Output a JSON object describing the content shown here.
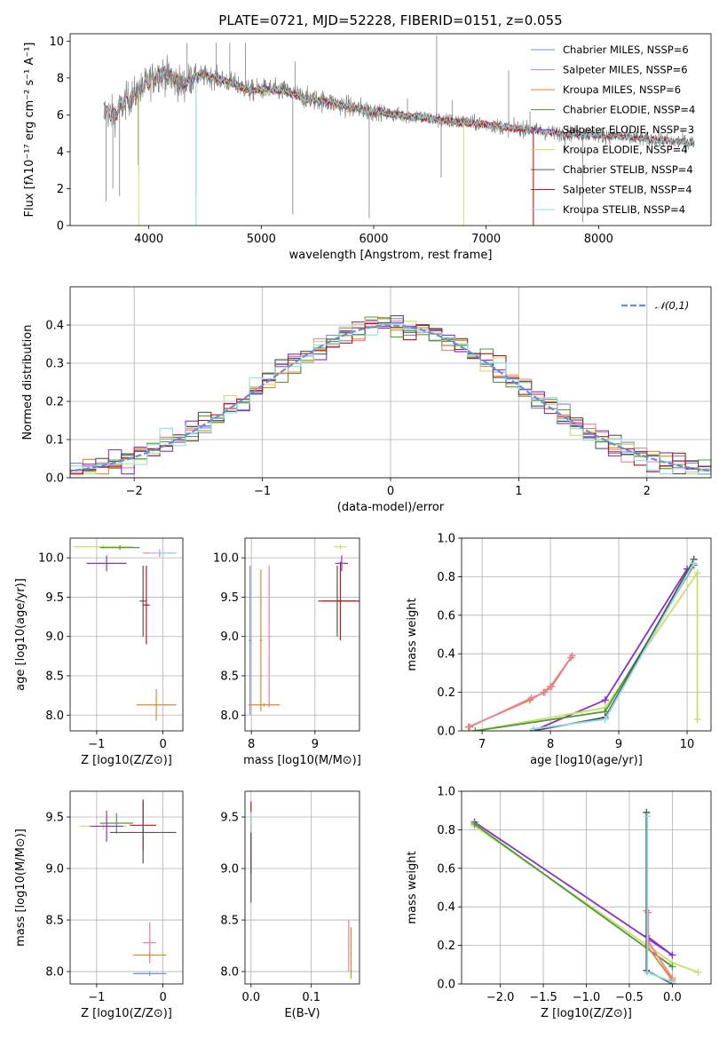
{
  "figure_title": "PLATE=0721, MJD=52228, FIBERID=0151, z=0.055",
  "colors": {
    "data": "#808080",
    "Chabrier MILES": "#6f8fd8",
    "Salpeter MILES": "#ee7fa3",
    "Kroupa MILES": "#d98a2b",
    "Chabrier ELODIE": "#4f9a3c",
    "Salpeter ELODIE": "#8a2fc7",
    "Kroupa ELODIE": "#c9df63",
    "Chabrier STELIB": "#555555",
    "Salpeter STELIB": "#b81818",
    "Kroupa STELIB": "#8fdde8",
    "gauss": "#5f8fdf"
  },
  "chart_data": [
    {
      "id": "spectrum",
      "type": "line",
      "xlabel": "wavelength [Angstrom, rest frame]",
      "ylabel": "Flux [fλ10⁻¹⁷ erg cm⁻² s⁻¹ A⁻¹]",
      "xlim": [
        3300,
        9000
      ],
      "ylim": [
        0,
        10.4
      ],
      "xticks": [
        4000,
        5000,
        6000,
        7000,
        8000
      ],
      "yticks": [
        0,
        2,
        4,
        6,
        8,
        10
      ],
      "grid": false,
      "legend_position": "top-right",
      "legend": [
        "Chabrier MILES, NSSP=6",
        "Salpeter MILES, NSSP=6",
        "Kroupa MILES, NSSP=6",
        "Chabrier ELODIE, NSSP=4",
        "Salpeter ELODIE, NSSP=3",
        "Kroupa ELODIE, NSSP=4",
        "Chabrier STELIB, NSSP=4",
        "Salpeter STELIB, NSSP=4",
        "Kroupa STELIB, NSSP=4"
      ],
      "continuum": [
        [
          3600,
          6.2
        ],
        [
          3700,
          6.0
        ],
        [
          3800,
          6.8
        ],
        [
          3900,
          7.2
        ],
        [
          4000,
          7.8
        ],
        [
          4100,
          8.3
        ],
        [
          4200,
          8.0
        ],
        [
          4300,
          7.6
        ],
        [
          4400,
          8.1
        ],
        [
          4500,
          8.1
        ],
        [
          4600,
          8.0
        ],
        [
          4700,
          7.8
        ],
        [
          4800,
          7.6
        ],
        [
          4900,
          7.3
        ],
        [
          5000,
          7.4
        ],
        [
          5200,
          7.3
        ],
        [
          5400,
          6.9
        ],
        [
          5600,
          6.7
        ],
        [
          5800,
          6.4
        ],
        [
          6000,
          6.2
        ],
        [
          6200,
          6.0
        ],
        [
          6400,
          5.9
        ],
        [
          6600,
          5.7
        ],
        [
          6800,
          5.6
        ],
        [
          7000,
          5.5
        ],
        [
          7200,
          5.3
        ],
        [
          7400,
          5.2
        ],
        [
          7600,
          5.0
        ],
        [
          7800,
          5.0
        ],
        [
          8000,
          4.9
        ],
        [
          8200,
          4.8
        ],
        [
          8400,
          4.7
        ],
        [
          8600,
          4.6
        ],
        [
          8800,
          4.5
        ]
      ],
      "data_spikes": [
        [
          3620,
          1.3
        ],
        [
          3680,
          2.0
        ],
        [
          3740,
          1.6
        ],
        [
          3905,
          3.3
        ],
        [
          4340,
          9.9
        ],
        [
          4420,
          1.6
        ],
        [
          4600,
          9.9
        ],
        [
          4720,
          9.9
        ],
        [
          4860,
          9.9
        ],
        [
          5280,
          0.6
        ],
        [
          5300,
          8.9
        ],
        [
          5960,
          0.4
        ],
        [
          6300,
          6.9
        ],
        [
          6560,
          10.3
        ],
        [
          6600,
          2.6
        ],
        [
          6700,
          6.8
        ],
        [
          7200,
          8.4
        ],
        [
          7390,
          6.2
        ],
        [
          7700,
          4.0
        ],
        [
          7860,
          0.2
        ]
      ]
    },
    {
      "id": "residuals",
      "type": "step",
      "xlabel": "(data-model)/error",
      "ylabel": "Normed distribution",
      "xlim": [
        -2.5,
        2.5
      ],
      "ylim": [
        0,
        0.5
      ],
      "xticks": [
        -2,
        -1,
        0,
        1,
        2
      ],
      "yticks": [
        0.0,
        0.1,
        0.2,
        0.3,
        0.4
      ],
      "grid": true,
      "legend": [
        "𝒩(0,1)"
      ],
      "legend_position": "top-right"
    },
    {
      "id": "age_vs_Z",
      "type": "errorbar",
      "xlabel": "Z [log10(Z/Z⊙)]",
      "ylabel": "age  [log10(age/yr)]",
      "xlim": [
        -1.4,
        0.3
      ],
      "ylim": [
        7.8,
        10.25
      ],
      "xticks": [
        -1,
        0
      ],
      "yticks": [
        8.0,
        8.5,
        9.0,
        9.5,
        10.0
      ],
      "grid": true,
      "points": [
        {
          "model": "Kroupa ELODIE",
          "x": -0.9,
          "xerr": 0.45,
          "y": 10.14,
          "yerr": 0.03
        },
        {
          "model": "Chabrier ELODIE",
          "x": -0.65,
          "xerr": 0.3,
          "y": 10.13,
          "yerr": 0.03
        },
        {
          "model": "Salpeter ELODIE",
          "x": -0.85,
          "xerr": 0.3,
          "y": 9.93,
          "yerr": 0.1
        },
        {
          "model": "Chabrier STELIB",
          "x": -0.3,
          "xerr": 0.05,
          "y": 9.45,
          "yerr": 0.45
        },
        {
          "model": "Salpeter STELIB",
          "x": -0.25,
          "xerr": 0.05,
          "y": 9.4,
          "yerr": 0.5
        },
        {
          "model": "Kroupa MILES",
          "x": -0.1,
          "xerr": 0.3,
          "y": 8.13,
          "yerr": 0.2
        },
        {
          "model": "Salpeter MILES",
          "x": -0.05,
          "xerr": 0.25,
          "y": 10.06,
          "yerr": 0.05
        },
        {
          "model": "Kroupa STELIB",
          "x": 0.0,
          "xerr": 0.2,
          "y": 10.06,
          "yerr": 0.05
        }
      ]
    },
    {
      "id": "age_vs_mass",
      "type": "errorbar",
      "xlabel": "mass [log10(M/M⊙)]",
      "ylabel": "",
      "xlim": [
        7.9,
        9.7
      ],
      "ylim": [
        7.8,
        10.25
      ],
      "xticks": [
        8,
        9
      ],
      "yticks": [
        8.0,
        8.5,
        9.0,
        9.5,
        10.0
      ],
      "grid": true,
      "points": [
        {
          "model": "Chabrier MILES",
          "x": 7.98,
          "xerr": 0.02,
          "y": 8.95,
          "yerr": 0.95
        },
        {
          "model": "Kroupa MILES",
          "x": 8.15,
          "xerr": 0.02,
          "y": 8.95,
          "yerr": 0.9
        },
        {
          "model": "Salpeter MILES",
          "x": 8.28,
          "xerr": 0.02,
          "y": 9.0,
          "yerr": 0.9
        },
        {
          "model": "Kroupa MILES",
          "x": 8.2,
          "xerr": 0.25,
          "y": 8.13,
          "yerr": 0.02
        },
        {
          "model": "Chabrier STELIB",
          "x": 9.35,
          "xerr": 0.3,
          "y": 9.45,
          "yerr": 0.45
        },
        {
          "model": "Salpeter STELIB",
          "x": 9.4,
          "xerr": 0.3,
          "y": 9.45,
          "yerr": 0.5
        },
        {
          "model": "Kroupa ELODIE",
          "x": 9.4,
          "xerr": 0.1,
          "y": 10.14,
          "yerr": 0.03
        },
        {
          "model": "Salpeter ELODIE",
          "x": 9.42,
          "xerr": 0.1,
          "y": 9.93,
          "yerr": 0.1
        }
      ]
    },
    {
      "id": "massweight_vs_age",
      "type": "line",
      "xlabel": "age  [log10(age/yr)]",
      "ylabel": "mass weight",
      "xlim": [
        6.7,
        10.35
      ],
      "ylim": [
        0,
        1.0
      ],
      "xticks": [
        7,
        8,
        9,
        10
      ],
      "yticks": [
        0.0,
        0.2,
        0.4,
        0.6,
        0.8,
        1.0
      ],
      "grid": true,
      "series": [
        {
          "model": "Kroupa MILES",
          "points": [
            [
              6.8,
              0.02
            ],
            [
              7.7,
              0.16
            ],
            [
              7.9,
              0.2
            ],
            [
              8.0,
              0.23
            ],
            [
              8.3,
              0.38
            ]
          ]
        },
        {
          "model": "Salpeter MILES",
          "points": [
            [
              6.82,
              0.02
            ],
            [
              7.72,
              0.17
            ],
            [
              7.92,
              0.2
            ],
            [
              8.02,
              0.23
            ],
            [
              8.32,
              0.39
            ]
          ]
        },
        {
          "model": "Salpeter ELODIE",
          "points": [
            [
              7.75,
              0.0
            ],
            [
              8.8,
              0.16
            ],
            [
              10.0,
              0.84
            ]
          ]
        },
        {
          "model": "Kroupa ELODIE",
          "points": [
            [
              6.9,
              0.0
            ],
            [
              8.8,
              0.12
            ],
            [
              10.15,
              0.82
            ],
            [
              10.15,
              0.06
            ]
          ]
        },
        {
          "model": "Chabrier ELODIE",
          "points": [
            [
              6.9,
              0.0
            ],
            [
              8.8,
              0.1
            ],
            [
              10.1,
              0.86
            ]
          ]
        },
        {
          "model": "Chabrier STELIB",
          "points": [
            [
              7.75,
              0.0
            ],
            [
              8.8,
              0.07
            ],
            [
              10.1,
              0.89
            ]
          ]
        },
        {
          "model": "Kroupa STELIB",
          "points": [
            [
              7.75,
              0.01
            ],
            [
              8.8,
              0.06
            ],
            [
              10.1,
              0.87
            ]
          ]
        }
      ]
    },
    {
      "id": "mass_vs_Z",
      "type": "errorbar",
      "xlabel": "Z [log10(Z/Z⊙)]",
      "ylabel": "mass [log10(M/M⊙)]",
      "xlim": [
        -1.4,
        0.3
      ],
      "ylim": [
        7.88,
        9.75
      ],
      "xticks": [
        -1,
        0
      ],
      "yticks": [
        8.0,
        8.5,
        9.0,
        9.5
      ],
      "grid": true,
      "points": [
        {
          "model": "Kroupa ELODIE",
          "x": -0.9,
          "xerr": 0.35,
          "y": 9.41,
          "yerr": 0.03
        },
        {
          "model": "Chabrier ELODIE",
          "x": -0.7,
          "xerr": 0.25,
          "y": 9.44,
          "yerr": 0.1
        },
        {
          "model": "Salpeter ELODIE",
          "x": -0.85,
          "xerr": 0.25,
          "y": 9.41,
          "yerr": 0.15
        },
        {
          "model": "Salpeter STELIB",
          "x": -0.3,
          "xerr": 0.2,
          "y": 9.42,
          "yerr": 0.25
        },
        {
          "model": "Chabrier STELIB",
          "x": -0.3,
          "xerr": 0.5,
          "y": 9.35,
          "yerr": 0.3
        },
        {
          "model": "Salpeter MILES",
          "x": -0.2,
          "xerr": 0.1,
          "y": 8.28,
          "yerr": 0.2
        },
        {
          "model": "Kroupa MILES",
          "x": -0.2,
          "xerr": 0.25,
          "y": 8.16,
          "yerr": 0.02
        },
        {
          "model": "Chabrier MILES",
          "x": -0.2,
          "xerr": 0.25,
          "y": 7.98,
          "yerr": 0.02
        }
      ]
    },
    {
      "id": "mass_vs_EBV",
      "type": "errorbar",
      "xlabel": "E(B-V)",
      "ylabel": "",
      "xlim": [
        -0.01,
        0.18
      ],
      "ylim": [
        7.88,
        9.75
      ],
      "xticks": [
        0.0,
        0.1
      ],
      "yticks": [
        8.0,
        8.5,
        9.0,
        9.5
      ],
      "grid": true,
      "points": [
        {
          "model": "Salpeter STELIB",
          "x": 0.0,
          "xerr": 0.001,
          "y": 9.3,
          "yerr": 0.35
        },
        {
          "model": "Chabrier STELIB",
          "x": 0.0,
          "xerr": 0.001,
          "y": 9.05,
          "yerr": 0.38
        },
        {
          "model": "Kroupa STELIB",
          "x": 0.0,
          "xerr": 0.001,
          "y": 9.45,
          "yerr": 0.1
        },
        {
          "model": "Salpeter MILES",
          "x": 0.162,
          "xerr": 0.001,
          "y": 8.25,
          "yerr": 0.25
        },
        {
          "model": "Kroupa MILES",
          "x": 0.166,
          "xerr": 0.001,
          "y": 8.18,
          "yerr": 0.25
        }
      ]
    },
    {
      "id": "massweight_vs_Z",
      "type": "line",
      "xlabel": "Z [log10(Z/Z⊙)]",
      "ylabel": "mass weight",
      "xlim": [
        -2.45,
        0.45
      ],
      "ylim": [
        0,
        1.0
      ],
      "xticks": [
        -2.0,
        -1.5,
        -1.0,
        -0.5,
        0.0
      ],
      "yticks": [
        0.0,
        0.2,
        0.4,
        0.6,
        0.8,
        1.0
      ],
      "grid": true,
      "series": [
        {
          "model": "Salpeter ELODIE",
          "points": [
            [
              -2.3,
              0.84
            ],
            [
              0.0,
              0.15
            ],
            [
              -0.3,
              0.25
            ]
          ]
        },
        {
          "model": "Kroupa ELODIE",
          "points": [
            [
              -2.3,
              0.82
            ],
            [
              0.0,
              0.11
            ],
            [
              0.3,
              0.06
            ]
          ]
        },
        {
          "model": "Chabrier ELODIE",
          "points": [
            [
              -2.3,
              0.83
            ],
            [
              0.0,
              0.09
            ]
          ]
        },
        {
          "model": "Kroupa MILES",
          "points": [
            [
              -0.3,
              0.38
            ],
            [
              -0.3,
              0.2
            ],
            [
              0.0,
              0.02
            ]
          ]
        },
        {
          "model": "Salpeter MILES",
          "points": [
            [
              -0.28,
              0.37
            ],
            [
              -0.28,
              0.22
            ],
            [
              0.0,
              0.03
            ]
          ]
        },
        {
          "model": "Chabrier STELIB",
          "points": [
            [
              -0.3,
              0.89
            ],
            [
              -0.3,
              0.07
            ],
            [
              0.0,
              0.0
            ]
          ]
        },
        {
          "model": "Kroupa STELIB",
          "points": [
            [
              -0.29,
              0.87
            ],
            [
              -0.29,
              0.06
            ],
            [
              0.0,
              0.01
            ]
          ]
        }
      ]
    }
  ]
}
